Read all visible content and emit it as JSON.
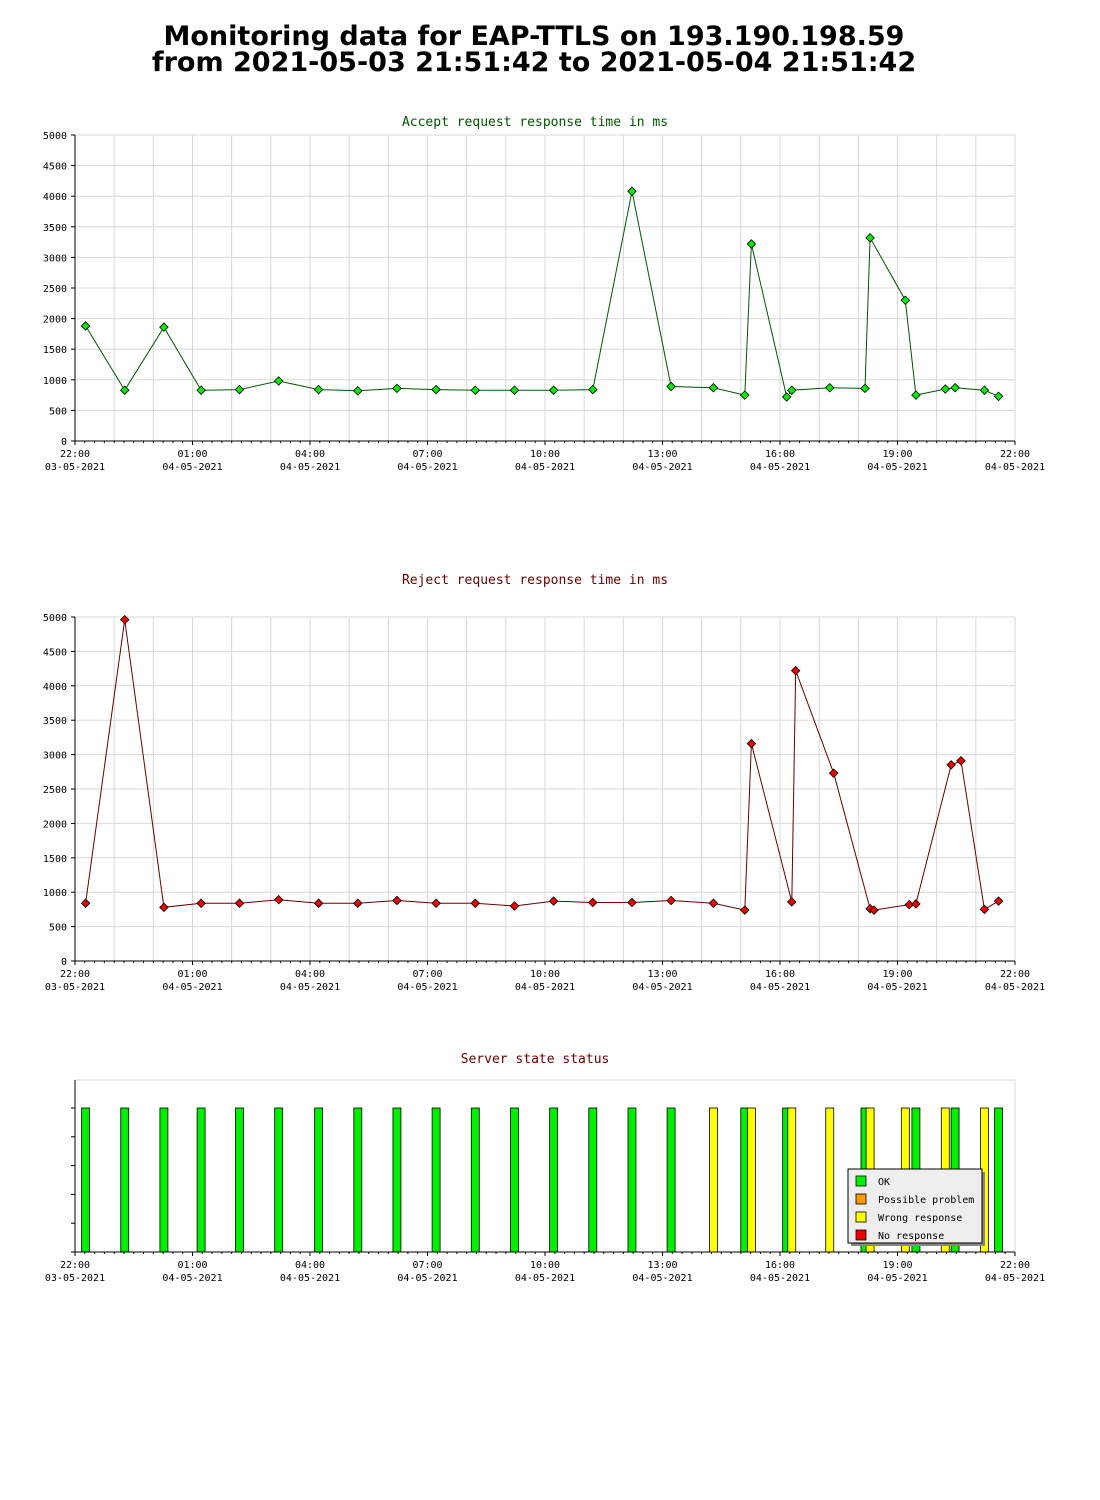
{
  "title": {
    "line1": "Monitoring data for EAP-TTLS on 193.190.198.59",
    "line2": "from 2021-05-03 21:51:42 to 2021-05-04 21:51:42"
  },
  "colors": {
    "accept_point": "#00ee00",
    "accept_line": "#005500",
    "reject_point": "#ee0000",
    "reject_line": "#660000",
    "grid": "#d8d8d8",
    "ok": "#00ee00",
    "possible_problem": "#ff9900",
    "wrong_response": "#ffff00",
    "no_response": "#ee0000"
  },
  "x_ticks": [
    {
      "time": "22:00",
      "date": "03-05-2021",
      "h": 0
    },
    {
      "time": "01:00",
      "date": "04-05-2021",
      "h": 3
    },
    {
      "time": "04:00",
      "date": "04-05-2021",
      "h": 6
    },
    {
      "time": "07:00",
      "date": "04-05-2021",
      "h": 9
    },
    {
      "time": "10:00",
      "date": "04-05-2021",
      "h": 12
    },
    {
      "time": "13:00",
      "date": "04-05-2021",
      "h": 15
    },
    {
      "time": "16:00",
      "date": "04-05-2021",
      "h": 18
    },
    {
      "time": "19:00",
      "date": "04-05-2021",
      "h": 21
    },
    {
      "time": "22:00",
      "date": "04-05-2021",
      "h": 24
    }
  ],
  "chart_data": [
    {
      "type": "line",
      "title": "Accept request response time in ms",
      "ylim": [
        0,
        5000
      ],
      "y_ticks": [
        0,
        500,
        1000,
        1500,
        2000,
        2500,
        3000,
        3500,
        4000,
        4500,
        5000
      ],
      "xlim_hours": [
        0,
        24
      ],
      "grid": true,
      "series": [
        {
          "x": [
            0.27,
            1.27,
            2.27,
            3.22,
            4.2,
            5.2,
            6.22,
            7.22,
            8.22,
            9.22,
            10.22,
            11.22,
            12.22,
            13.22,
            14.22,
            15.22,
            16.3,
            17.1,
            17.27,
            18.17,
            18.3,
            19.27,
            20.17,
            20.3,
            21.2,
            21.47,
            22.22,
            22.47,
            23.22,
            23.58
          ],
          "y": [
            1880,
            830,
            1860,
            830,
            840,
            980,
            840,
            820,
            860,
            840,
            830,
            830,
            830,
            840,
            4080,
            890,
            870,
            750,
            3220,
            720,
            830,
            870,
            860,
            3320,
            2300,
            750,
            850,
            870,
            830,
            730
          ]
        }
      ]
    },
    {
      "type": "line",
      "title": "Reject request response time in ms",
      "ylim": [
        0,
        5000
      ],
      "y_ticks": [
        0,
        500,
        1000,
        1500,
        2000,
        2500,
        3000,
        3500,
        4000,
        4500,
        5000
      ],
      "xlim_hours": [
        0,
        24
      ],
      "grid": true,
      "series": [
        {
          "x": [
            0.27,
            1.27,
            2.27,
            3.22,
            4.2,
            5.2,
            6.22,
            7.22,
            8.22,
            9.22,
            10.22,
            11.22,
            12.22,
            13.22,
            14.22,
            15.22,
            16.3,
            17.1,
            17.27,
            18.3,
            18.4,
            19.37,
            20.3,
            20.4,
            21.3,
            21.47,
            22.37,
            22.62,
            23.22,
            23.58
          ],
          "y": [
            840,
            4960,
            780,
            840,
            840,
            890,
            840,
            840,
            880,
            840,
            840,
            800,
            870,
            850,
            850,
            880,
            840,
            740,
            3160,
            860,
            4220,
            2730,
            760,
            740,
            820,
            830,
            2850,
            2910,
            750,
            870
          ]
        }
      ]
    },
    {
      "type": "bar",
      "title": "Server state status",
      "xlim_hours": [
        0,
        24
      ],
      "legend_position": "bottom-right",
      "legend": [
        {
          "label": "OK",
          "color": "#00ee00"
        },
        {
          "label": "Possible problem",
          "color": "#ff9900"
        },
        {
          "label": "Wrong response",
          "color": "#ffff00"
        },
        {
          "label": "No response",
          "color": "#ee0000"
        }
      ],
      "states": [
        {
          "h": 0.27,
          "state": "OK"
        },
        {
          "h": 1.27,
          "state": "OK"
        },
        {
          "h": 2.27,
          "state": "OK"
        },
        {
          "h": 3.22,
          "state": "OK"
        },
        {
          "h": 4.2,
          "state": "OK"
        },
        {
          "h": 5.2,
          "state": "OK"
        },
        {
          "h": 6.22,
          "state": "OK"
        },
        {
          "h": 7.22,
          "state": "OK"
        },
        {
          "h": 8.22,
          "state": "OK"
        },
        {
          "h": 9.22,
          "state": "OK"
        },
        {
          "h": 10.22,
          "state": "OK"
        },
        {
          "h": 11.22,
          "state": "OK"
        },
        {
          "h": 12.22,
          "state": "OK"
        },
        {
          "h": 13.22,
          "state": "OK"
        },
        {
          "h": 14.22,
          "state": "OK"
        },
        {
          "h": 15.22,
          "state": "OK"
        },
        {
          "h": 16.3,
          "state": "Wrong response"
        },
        {
          "h": 17.1,
          "state": "OK"
        },
        {
          "h": 17.27,
          "state": "Wrong response"
        },
        {
          "h": 18.17,
          "state": "OK"
        },
        {
          "h": 18.3,
          "state": "Wrong response"
        },
        {
          "h": 19.27,
          "state": "Wrong response"
        },
        {
          "h": 20.17,
          "state": "OK"
        },
        {
          "h": 20.3,
          "state": "Wrong response"
        },
        {
          "h": 21.2,
          "state": "Wrong response"
        },
        {
          "h": 21.47,
          "state": "OK"
        },
        {
          "h": 22.22,
          "state": "Wrong response"
        },
        {
          "h": 22.47,
          "state": "OK"
        },
        {
          "h": 23.22,
          "state": "Wrong response"
        },
        {
          "h": 23.58,
          "state": "OK"
        }
      ]
    }
  ]
}
